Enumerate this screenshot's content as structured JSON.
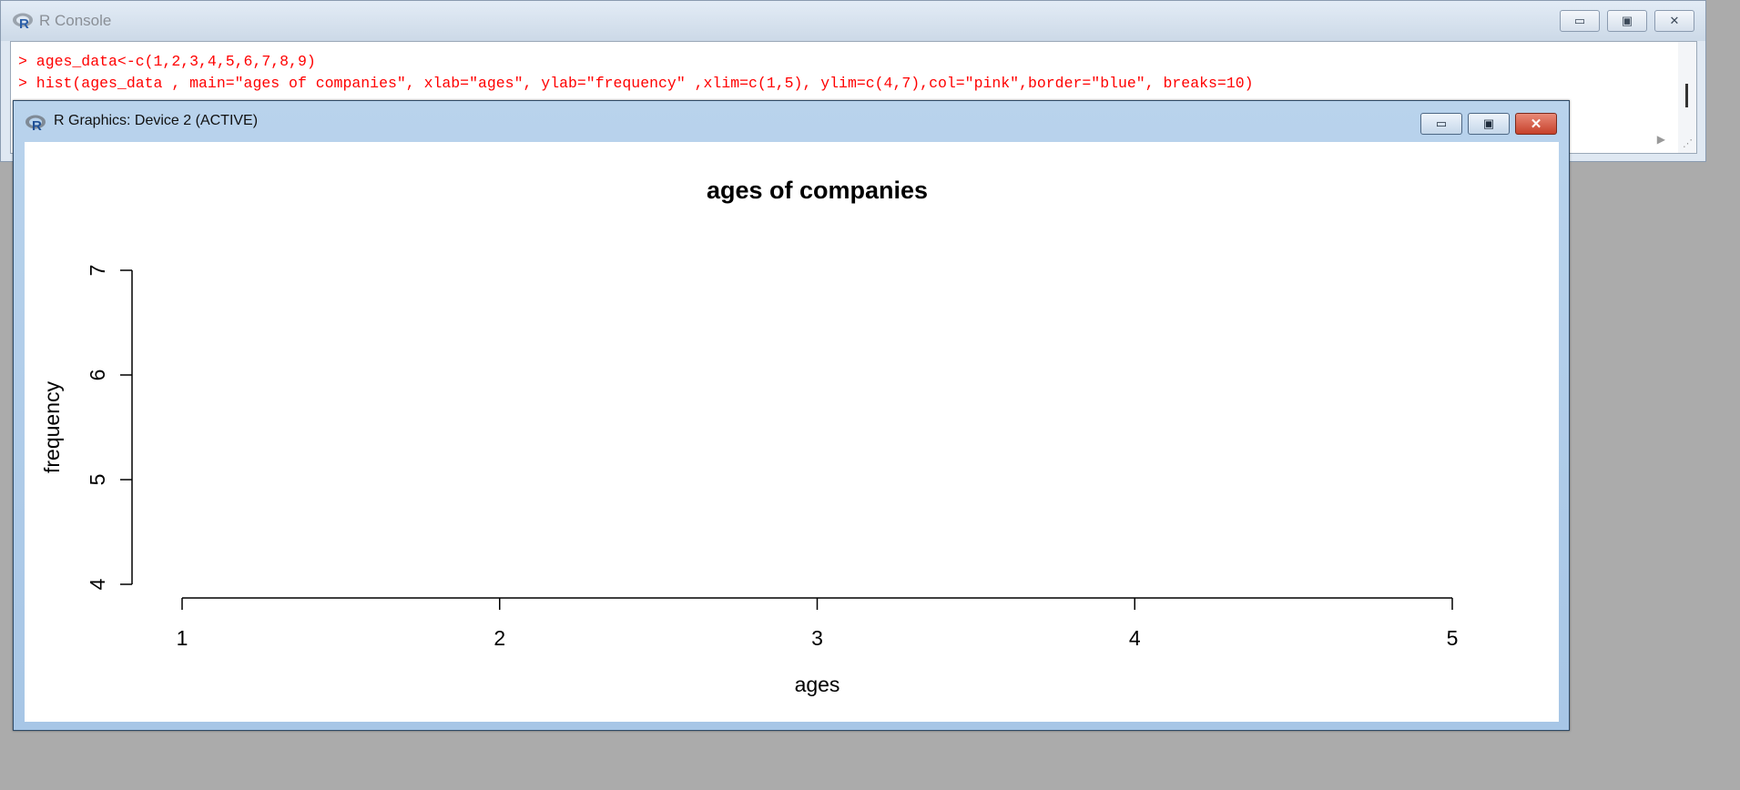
{
  "console": {
    "title": "R Console",
    "lines": [
      "> ages_data<-c(1,2,3,4,5,6,7,8,9)",
      "> hist(ages_data , main=\"ages of companies\", xlab=\"ages\", ylab=\"frequency\" ,xlim=c(1,5), ylim=c(4,7),col=\"pink\",border=\"blue\", breaks=10)"
    ]
  },
  "graphics": {
    "title": "R Graphics: Device 2 (ACTIVE)"
  },
  "window_buttons": {
    "minimize": "▭",
    "maximize": "▣",
    "close": "✕"
  },
  "colors": {
    "console_text": "#ff0000",
    "axis": "#000000"
  },
  "chart_data": {
    "type": "bar",
    "title": "ages of companies",
    "xlabel": "ages",
    "ylabel": "frequency",
    "xlim": [
      1,
      5
    ],
    "ylim": [
      4,
      7
    ],
    "x_ticks": [
      "1",
      "2",
      "3",
      "4",
      "5"
    ],
    "y_ticks": [
      "4",
      "5",
      "6",
      "7"
    ],
    "values": [],
    "grid": false
  }
}
